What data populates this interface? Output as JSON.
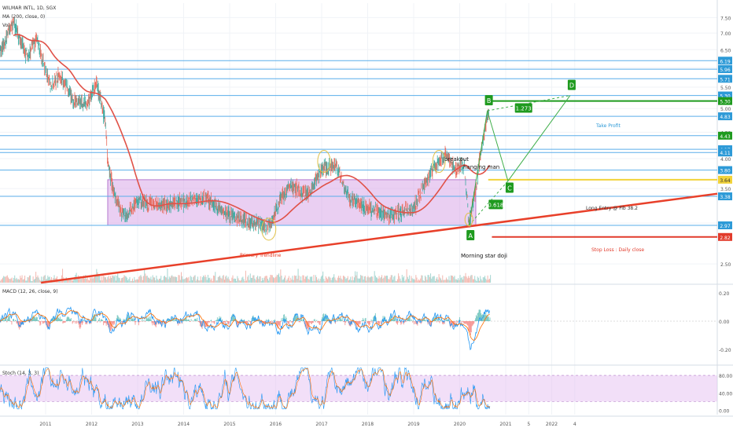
{
  "header": {
    "symbol_line": "WILMAR INTL, 1D, SGX",
    "ma_label": "MA (200, close, 0)",
    "vol_label": "Vol"
  },
  "colors": {
    "level_line": "#5aaeea",
    "trend_line": "#e8402a",
    "ma_line": "#e05248",
    "fib_yellow": "#f2d33a",
    "range_box": "#d8a8e8",
    "pattern_green": "#1e9a1e",
    "candle_up": "#3aa99f",
    "candle_down": "#e86a5a",
    "price_tag_blue": "#2d9ad7",
    "stop_red": "#e23b2b"
  },
  "chart_data": [
    {
      "type": "line",
      "panel": "price",
      "title": "WILMAR INTL, 1D, SGX",
      "y_scale": "log",
      "ylim": [
        2.3,
        8.0
      ],
      "y_ticks": [
        2.5,
        3.0,
        3.5,
        4.0,
        4.5,
        5.0,
        5.5,
        6.0,
        6.5,
        7.0,
        7.5
      ],
      "y_tick_labels": [
        "2.50",
        "3.00",
        "3.50",
        "4.00",
        "4.50",
        "5.00",
        "5.50",
        "6.00",
        "6.50",
        "7.00",
        "7.50"
      ],
      "x_tick_labels": [
        "2011",
        "2012",
        "2013",
        "2014",
        "2015",
        "2016",
        "2017",
        "2018",
        "2019",
        "2020",
        "2021",
        "5",
        "2022",
        "4"
      ],
      "horizontal_levels": [
        6.19,
        5.96,
        5.71,
        5.3,
        4.83,
        4.43,
        4.17,
        4.11,
        3.8,
        3.38,
        2.97
      ],
      "price_tags": [
        {
          "label": "6.19",
          "value": 6.19,
          "role": "level"
        },
        {
          "label": "5.96",
          "value": 5.96,
          "role": "level"
        },
        {
          "label": "5.71",
          "value": 5.71,
          "role": "level"
        },
        {
          "label": "5.30",
          "value": 5.3,
          "role": "level"
        },
        {
          "label": "5.30",
          "value": 5.17,
          "role": "target"
        },
        {
          "label": "4.83",
          "value": 4.83,
          "role": "level"
        },
        {
          "label": "4.43",
          "value": 4.43,
          "role": "last"
        },
        {
          "label": "4.17",
          "value": 4.17,
          "role": "level"
        },
        {
          "label": "4.11",
          "value": 4.11,
          "role": "level"
        },
        {
          "label": "3.80",
          "value": 3.8,
          "role": "level"
        },
        {
          "label": "3.64",
          "value": 3.64,
          "role": "entry"
        },
        {
          "label": "3.38",
          "value": 3.38,
          "role": "level"
        },
        {
          "label": "2.97",
          "value": 2.97,
          "role": "level"
        },
        {
          "label": "2.82",
          "value": 2.82,
          "role": "stop"
        }
      ],
      "abcd_pattern": {
        "points": [
          {
            "label": "A",
            "t": 2020.2,
            "value": 2.97
          },
          {
            "label": "B",
            "t": 2020.6,
            "value": 4.95
          },
          {
            "label": "C",
            "t": 2021.05,
            "value": 3.62
          },
          {
            "label": "D",
            "t": 2022.4,
            "value": 5.3
          }
        ],
        "ratios": [
          "0.618",
          "1.273"
        ]
      },
      "annotations": [
        "breakout",
        "hanging man",
        "Morning star doji",
        "Primary Trendline",
        "Take Profit",
        "Long Entry @ Fib 38.2",
        "Stop Loss : Daily close"
      ],
      "range_box": {
        "t_start": 2012.35,
        "t_end": 2020.35,
        "low": 2.97,
        "high": 3.64
      },
      "trend_line": {
        "t_start": 2010.9,
        "value_start": 2.3,
        "t_end": 2023.0,
        "value_end": 3.42
      }
    },
    {
      "type": "line",
      "panel": "macd",
      "title": "MACD (12, 26, close, 9)",
      "ylim": [
        -0.3,
        0.25
      ],
      "y_tick_labels": [
        "0.20",
        "0.00",
        "-0.20"
      ]
    },
    {
      "type": "line",
      "panel": "stoch",
      "title": "Stoch (14, 3, 3)",
      "ylim": [
        -10,
        100
      ],
      "y_tick_labels": [
        "80.00",
        "40.00",
        "0.00"
      ],
      "band": [
        20,
        80
      ]
    }
  ]
}
